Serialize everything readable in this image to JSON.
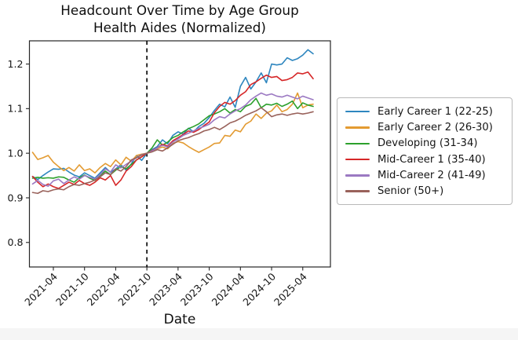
{
  "page": {
    "background": "#ffffff",
    "bottom_strip_color": "#f5f5f5"
  },
  "title": {
    "line1": "Headcount Over Time by Age Group",
    "line2": "Health Aides (Normalized)"
  },
  "chart_data": {
    "type": "line",
    "title": "Headcount Over Time by Age Group",
    "subtitle": "Health Aides (Normalized)",
    "xlabel": "Date",
    "ylabel": "",
    "grid": false,
    "legend_position": "right-outside",
    "axis_color": "#262626",
    "tick_label_color": "#161616",
    "ylim": [
      0.745,
      1.252
    ],
    "y_ticks": [
      0.8,
      0.9,
      1.0,
      1.1,
      1.2
    ],
    "x_tick_labels": [
      "2021-04",
      "2021-10",
      "2022-04",
      "2022-10",
      "2023-04",
      "2023-10",
      "2024-04",
      "2024-10",
      "2025-04"
    ],
    "vline": {
      "x": "2022-10",
      "style": "dashed",
      "color": "#000000",
      "meaning": "normalization-date"
    },
    "x": [
      "2020-12",
      "2021-01",
      "2021-02",
      "2021-03",
      "2021-04",
      "2021-05",
      "2021-06",
      "2021-07",
      "2021-08",
      "2021-09",
      "2021-10",
      "2021-11",
      "2021-12",
      "2022-01",
      "2022-02",
      "2022-03",
      "2022-04",
      "2022-05",
      "2022-06",
      "2022-07",
      "2022-08",
      "2022-09",
      "2022-10",
      "2022-11",
      "2022-12",
      "2023-01",
      "2023-02",
      "2023-03",
      "2023-04",
      "2023-05",
      "2023-06",
      "2023-07",
      "2023-08",
      "2023-09",
      "2023-10",
      "2023-11",
      "2023-12",
      "2024-01",
      "2024-02",
      "2024-03",
      "2024-04",
      "2024-05",
      "2024-06",
      "2024-07",
      "2024-08",
      "2024-09",
      "2024-10",
      "2024-11",
      "2024-12",
      "2025-01",
      "2025-02",
      "2025-03",
      "2025-04",
      "2025-05",
      "2025-06"
    ],
    "series": [
      {
        "name": "Early Career 1 (22-25)",
        "color": "#2e86bf",
        "values": [
          0.948,
          0.941,
          0.95,
          0.958,
          0.965,
          0.964,
          0.966,
          0.958,
          0.951,
          0.947,
          0.956,
          0.95,
          0.944,
          0.956,
          0.968,
          0.957,
          0.965,
          0.974,
          0.962,
          0.976,
          0.995,
          0.984,
          1.0,
          1.008,
          1.015,
          1.03,
          1.021,
          1.04,
          1.048,
          1.043,
          1.056,
          1.048,
          1.06,
          1.067,
          1.08,
          1.096,
          1.11,
          1.104,
          1.126,
          1.103,
          1.15,
          1.17,
          1.144,
          1.16,
          1.18,
          1.158,
          1.2,
          1.198,
          1.2,
          1.214,
          1.208,
          1.212,
          1.22,
          1.232,
          1.223
        ]
      },
      {
        "name": "Early Career 2 (26-30)",
        "color": "#e39b32",
        "values": [
          1.002,
          0.986,
          0.99,
          0.995,
          0.98,
          0.97,
          0.961,
          0.968,
          0.96,
          0.974,
          0.961,
          0.965,
          0.956,
          0.968,
          0.977,
          0.97,
          0.985,
          0.974,
          0.991,
          0.982,
          0.995,
          0.998,
          1.0,
          1.005,
          1.01,
          1.014,
          1.01,
          1.022,
          1.026,
          1.023,
          1.015,
          1.008,
          1.002,
          1.008,
          1.014,
          1.022,
          1.023,
          1.04,
          1.038,
          1.052,
          1.048,
          1.065,
          1.072,
          1.088,
          1.078,
          1.09,
          1.095,
          1.108,
          1.093,
          1.098,
          1.11,
          1.135,
          1.102,
          1.108,
          1.11
        ]
      },
      {
        "name": "Developing (31-34)",
        "color": "#2ca02c",
        "values": [
          0.944,
          0.946,
          0.944,
          0.945,
          0.944,
          0.947,
          0.946,
          0.94,
          0.935,
          0.945,
          0.951,
          0.944,
          0.939,
          0.95,
          0.96,
          0.952,
          0.962,
          0.97,
          0.965,
          0.975,
          0.985,
          0.992,
          1.0,
          1.012,
          1.03,
          1.018,
          1.025,
          1.035,
          1.04,
          1.048,
          1.055,
          1.06,
          1.066,
          1.075,
          1.084,
          1.088,
          1.093,
          1.1,
          1.09,
          1.098,
          1.093,
          1.105,
          1.11,
          1.123,
          1.102,
          1.11,
          1.108,
          1.112,
          1.105,
          1.11,
          1.117,
          1.1,
          1.113,
          1.108,
          1.105
        ]
      },
      {
        "name": "Mid-Career 1 (35-40)",
        "color": "#d62728",
        "values": [
          0.948,
          0.935,
          0.925,
          0.931,
          0.925,
          0.921,
          0.928,
          0.935,
          0.93,
          0.939,
          0.932,
          0.928,
          0.935,
          0.945,
          0.94,
          0.95,
          0.928,
          0.94,
          0.96,
          0.97,
          0.985,
          0.992,
          1.0,
          1.006,
          1.012,
          1.02,
          1.016,
          1.028,
          1.035,
          1.042,
          1.05,
          1.047,
          1.053,
          1.062,
          1.07,
          1.091,
          1.105,
          1.114,
          1.11,
          1.118,
          1.13,
          1.138,
          1.154,
          1.16,
          1.168,
          1.175,
          1.17,
          1.172,
          1.163,
          1.165,
          1.17,
          1.18,
          1.178,
          1.182,
          1.167
        ]
      },
      {
        "name": "Mid-Career 2 (41-49)",
        "color": "#9b79c2",
        "values": [
          0.931,
          0.939,
          0.93,
          0.926,
          0.938,
          0.942,
          0.932,
          0.94,
          0.947,
          0.942,
          0.95,
          0.946,
          0.942,
          0.952,
          0.965,
          0.958,
          0.974,
          0.967,
          0.975,
          0.982,
          0.99,
          0.997,
          1.0,
          1.005,
          1.012,
          1.018,
          1.014,
          1.025,
          1.032,
          1.04,
          1.045,
          1.05,
          1.056,
          1.06,
          1.065,
          1.075,
          1.082,
          1.079,
          1.088,
          1.095,
          1.1,
          1.108,
          1.12,
          1.128,
          1.135,
          1.13,
          1.133,
          1.128,
          1.126,
          1.13,
          1.126,
          1.122,
          1.128,
          1.124,
          1.12
        ]
      },
      {
        "name": "Senior (50+)",
        "color": "#99625b",
        "values": [
          0.912,
          0.91,
          0.916,
          0.914,
          0.918,
          0.92,
          0.918,
          0.925,
          0.93,
          0.928,
          0.932,
          0.935,
          0.94,
          0.947,
          0.956,
          0.952,
          0.965,
          0.96,
          0.97,
          0.985,
          0.99,
          0.996,
          1.0,
          1.003,
          1.008,
          1.005,
          1.012,
          1.02,
          1.028,
          1.032,
          1.035,
          1.04,
          1.044,
          1.05,
          1.053,
          1.058,
          1.053,
          1.06,
          1.068,
          1.072,
          1.078,
          1.085,
          1.09,
          1.095,
          1.102,
          1.093,
          1.082,
          1.086,
          1.088,
          1.085,
          1.088,
          1.09,
          1.088,
          1.09,
          1.093
        ]
      }
    ]
  }
}
